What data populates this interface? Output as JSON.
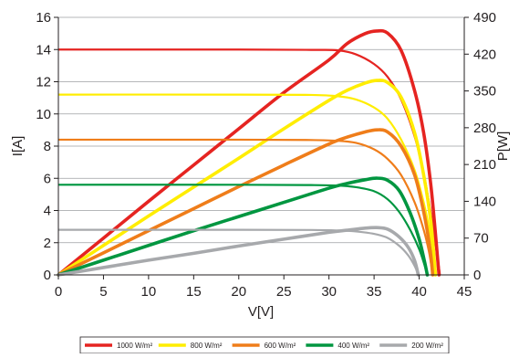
{
  "chart_data": {
    "type": "line",
    "xlabel": "V[V]",
    "ylabel": "I[A]",
    "y2label": "P[W]",
    "xlim": [
      0,
      45
    ],
    "ylim": [
      0,
      16
    ],
    "y2lim": [
      0,
      490
    ],
    "xticks": [
      "0",
      "5",
      "10",
      "15",
      "20",
      "25",
      "30",
      "35",
      "40",
      "45"
    ],
    "yticks": [
      "0",
      "2",
      "4",
      "6",
      "8",
      "10",
      "12",
      "14",
      "16"
    ],
    "y2ticks": [
      "0",
      "70",
      "140",
      "210",
      "280",
      "350",
      "420",
      "490"
    ],
    "grid": true,
    "legend_position": "bottom",
    "series": [
      {
        "name": "1000 W/m²",
        "color": "#e52421",
        "iv": [
          [
            0,
            14.0
          ],
          [
            20,
            14.0
          ],
          [
            28,
            13.98
          ],
          [
            31,
            13.95
          ],
          [
            33,
            13.7
          ],
          [
            35,
            13.1
          ],
          [
            36.5,
            12.3
          ],
          [
            38,
            10.9
          ],
          [
            39.5,
            8.6
          ],
          [
            40.5,
            6.3
          ],
          [
            41.3,
            3.8
          ],
          [
            42.0,
            1.2
          ],
          [
            42.3,
            0
          ]
        ],
        "pv": [
          [
            0,
            0
          ],
          [
            5,
            70
          ],
          [
            10,
            140
          ],
          [
            15,
            209
          ],
          [
            20,
            278
          ],
          [
            25,
            347
          ],
          [
            30,
            409
          ],
          [
            32,
            440
          ],
          [
            34,
            459
          ],
          [
            35.3,
            464
          ],
          [
            36.5,
            460
          ],
          [
            38,
            427
          ],
          [
            39.5,
            350
          ],
          [
            40.5,
            270
          ],
          [
            41.3,
            170
          ],
          [
            41.9,
            60
          ],
          [
            42.2,
            0
          ]
        ]
      },
      {
        "name": "800 W/m²",
        "color": "#ffed00",
        "iv": [
          [
            0,
            11.2
          ],
          [
            20,
            11.2
          ],
          [
            28,
            11.18
          ],
          [
            31,
            11.1
          ],
          [
            33,
            10.9
          ],
          [
            35,
            10.4
          ],
          [
            36.5,
            9.7
          ],
          [
            38,
            8.4
          ],
          [
            39.5,
            6.5
          ],
          [
            40.5,
            4.5
          ],
          [
            41.3,
            2.3
          ],
          [
            41.7,
            0.8
          ],
          [
            41.9,
            0
          ]
        ],
        "pv": [
          [
            0,
            0
          ],
          [
            5,
            56
          ],
          [
            10,
            112
          ],
          [
            15,
            167
          ],
          [
            20,
            222
          ],
          [
            25,
            278
          ],
          [
            30,
            332
          ],
          [
            32,
            351
          ],
          [
            34,
            365
          ],
          [
            35.3,
            370
          ],
          [
            36.5,
            366
          ],
          [
            38,
            338
          ],
          [
            39.5,
            270
          ],
          [
            40.5,
            190
          ],
          [
            41.3,
            100
          ],
          [
            41.8,
            0
          ]
        ]
      },
      {
        "name": "600 W/m²",
        "color": "#ef7d1a",
        "iv": [
          [
            0,
            8.4
          ],
          [
            20,
            8.4
          ],
          [
            28,
            8.38
          ],
          [
            31,
            8.33
          ],
          [
            33,
            8.2
          ],
          [
            35,
            7.8
          ],
          [
            36.5,
            7.2
          ],
          [
            38,
            6.2
          ],
          [
            39.5,
            4.5
          ],
          [
            40.5,
            2.8
          ],
          [
            41.1,
            1.4
          ],
          [
            41.5,
            0
          ]
        ],
        "pv": [
          [
            0,
            0
          ],
          [
            5,
            42
          ],
          [
            10,
            84
          ],
          [
            15,
            126
          ],
          [
            20,
            168
          ],
          [
            25,
            209
          ],
          [
            30,
            249
          ],
          [
            32,
            262
          ],
          [
            34,
            272
          ],
          [
            35.3,
            276
          ],
          [
            36.5,
            272
          ],
          [
            38,
            245
          ],
          [
            39.5,
            190
          ],
          [
            40.5,
            120
          ],
          [
            41.2,
            50
          ],
          [
            41.5,
            0
          ]
        ]
      },
      {
        "name": "400 W/m²",
        "color": "#009640",
        "iv": [
          [
            0,
            5.6
          ],
          [
            20,
            5.6
          ],
          [
            28,
            5.58
          ],
          [
            31,
            5.55
          ],
          [
            33,
            5.45
          ],
          [
            35,
            5.2
          ],
          [
            36.5,
            4.7
          ],
          [
            37.8,
            3.9
          ],
          [
            39,
            2.8
          ],
          [
            40,
            1.6
          ],
          [
            40.6,
            0.6
          ],
          [
            40.9,
            0
          ]
        ],
        "pv": [
          [
            0,
            0
          ],
          [
            5,
            28
          ],
          [
            10,
            56
          ],
          [
            15,
            84
          ],
          [
            20,
            111
          ],
          [
            25,
            138
          ],
          [
            30,
            165
          ],
          [
            32,
            174
          ],
          [
            34,
            181
          ],
          [
            35.3,
            184
          ],
          [
            36.5,
            180
          ],
          [
            37.8,
            160
          ],
          [
            39,
            118
          ],
          [
            40,
            68
          ],
          [
            40.6,
            25
          ],
          [
            40.9,
            0
          ]
        ]
      },
      {
        "name": "200 W/m²",
        "color": "#a7a9ac",
        "iv": [
          [
            0,
            2.8
          ],
          [
            20,
            2.8
          ],
          [
            28,
            2.79
          ],
          [
            31,
            2.76
          ],
          [
            33,
            2.7
          ],
          [
            35,
            2.55
          ],
          [
            36.5,
            2.3
          ],
          [
            37.8,
            1.8
          ],
          [
            38.8,
            1.2
          ],
          [
            39.5,
            0.55
          ],
          [
            39.9,
            0
          ]
        ],
        "pv": [
          [
            0,
            0
          ],
          [
            5,
            14
          ],
          [
            10,
            28
          ],
          [
            15,
            41
          ],
          [
            20,
            55
          ],
          [
            25,
            68
          ],
          [
            30,
            81
          ],
          [
            32,
            85
          ],
          [
            34,
            89
          ],
          [
            35.3,
            90
          ],
          [
            36.5,
            87
          ],
          [
            37.8,
            72
          ],
          [
            38.8,
            52
          ],
          [
            39.5,
            27
          ],
          [
            39.9,
            0
          ]
        ]
      }
    ]
  }
}
